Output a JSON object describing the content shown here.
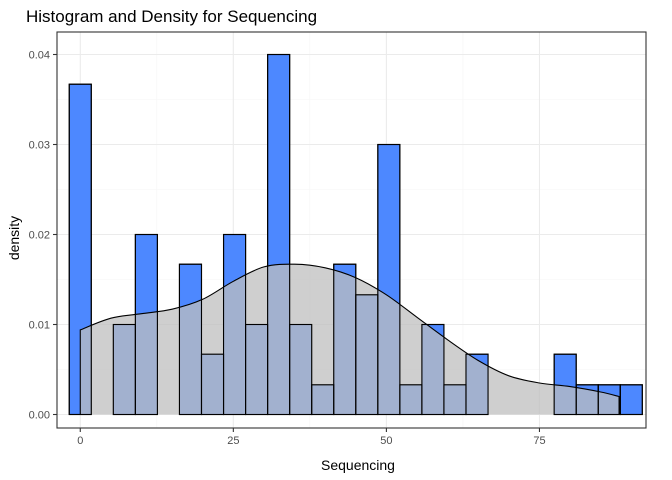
{
  "chart_data": {
    "type": "histogram",
    "title": "Histogram and Density for Sequencing",
    "xlabel": "Sequencing",
    "ylabel": "density",
    "xlim": [
      -3.8,
      92.4
    ],
    "ylim": [
      -0.0015,
      0.0425
    ],
    "xticks": [
      0,
      25,
      50,
      75
    ],
    "xtick_labels": [
      "0",
      "25",
      "50",
      "75"
    ],
    "yticks": [
      0,
      0.01,
      0.02,
      0.03,
      0.04
    ],
    "ytick_labels": [
      "0.00",
      "0.01",
      "0.02",
      "0.03",
      "0.04"
    ],
    "grid": true,
    "bin_width": 3.6,
    "bins": [
      {
        "center": 0,
        "density": 0.0367
      },
      {
        "center": 3.6,
        "density": 0.0
      },
      {
        "center": 7.2,
        "density": 0.01
      },
      {
        "center": 10.8,
        "density": 0.02
      },
      {
        "center": 14.4,
        "density": 0.0
      },
      {
        "center": 18.0,
        "density": 0.0167
      },
      {
        "center": 21.6,
        "density": 0.0067
      },
      {
        "center": 25.2,
        "density": 0.02
      },
      {
        "center": 28.8,
        "density": 0.01
      },
      {
        "center": 32.4,
        "density": 0.04
      },
      {
        "center": 36.0,
        "density": 0.01
      },
      {
        "center": 39.6,
        "density": 0.0033
      },
      {
        "center": 43.2,
        "density": 0.0167
      },
      {
        "center": 46.8,
        "density": 0.0133
      },
      {
        "center": 50.4,
        "density": 0.03
      },
      {
        "center": 54.0,
        "density": 0.0033
      },
      {
        "center": 57.6,
        "density": 0.01
      },
      {
        "center": 61.2,
        "density": 0.0033
      },
      {
        "center": 64.8,
        "density": 0.0067
      },
      {
        "center": 68.4,
        "density": 0.0
      },
      {
        "center": 72.0,
        "density": 0.0
      },
      {
        "center": 75.6,
        "density": 0.0
      },
      {
        "center": 79.2,
        "density": 0.0067
      },
      {
        "center": 82.8,
        "density": 0.0033
      },
      {
        "center": 86.4,
        "density": 0.0033
      },
      {
        "center": 90.0,
        "density": 0.0033
      }
    ],
    "density_curve": {
      "x": [
        0,
        5,
        10,
        15,
        20,
        25,
        30,
        35,
        40,
        45,
        50,
        55,
        60,
        65,
        70,
        75,
        80,
        85,
        88
      ],
      "y": [
        0.0094,
        0.0107,
        0.0112,
        0.0117,
        0.0128,
        0.0148,
        0.0164,
        0.0167,
        0.0163,
        0.0152,
        0.0133,
        0.0108,
        0.0083,
        0.006,
        0.0043,
        0.0035,
        0.0031,
        0.0025,
        0.002
      ]
    },
    "colors": {
      "bar_fill": "#4d88ff",
      "bar_stroke": "#000000",
      "density_fill": "#bfbfbf",
      "density_fill_opacity": 0.75,
      "density_stroke": "#000000",
      "grid_major": "#ebebeb",
      "grid_minor": "#f5f5f5",
      "panel_border": "#333333"
    }
  }
}
